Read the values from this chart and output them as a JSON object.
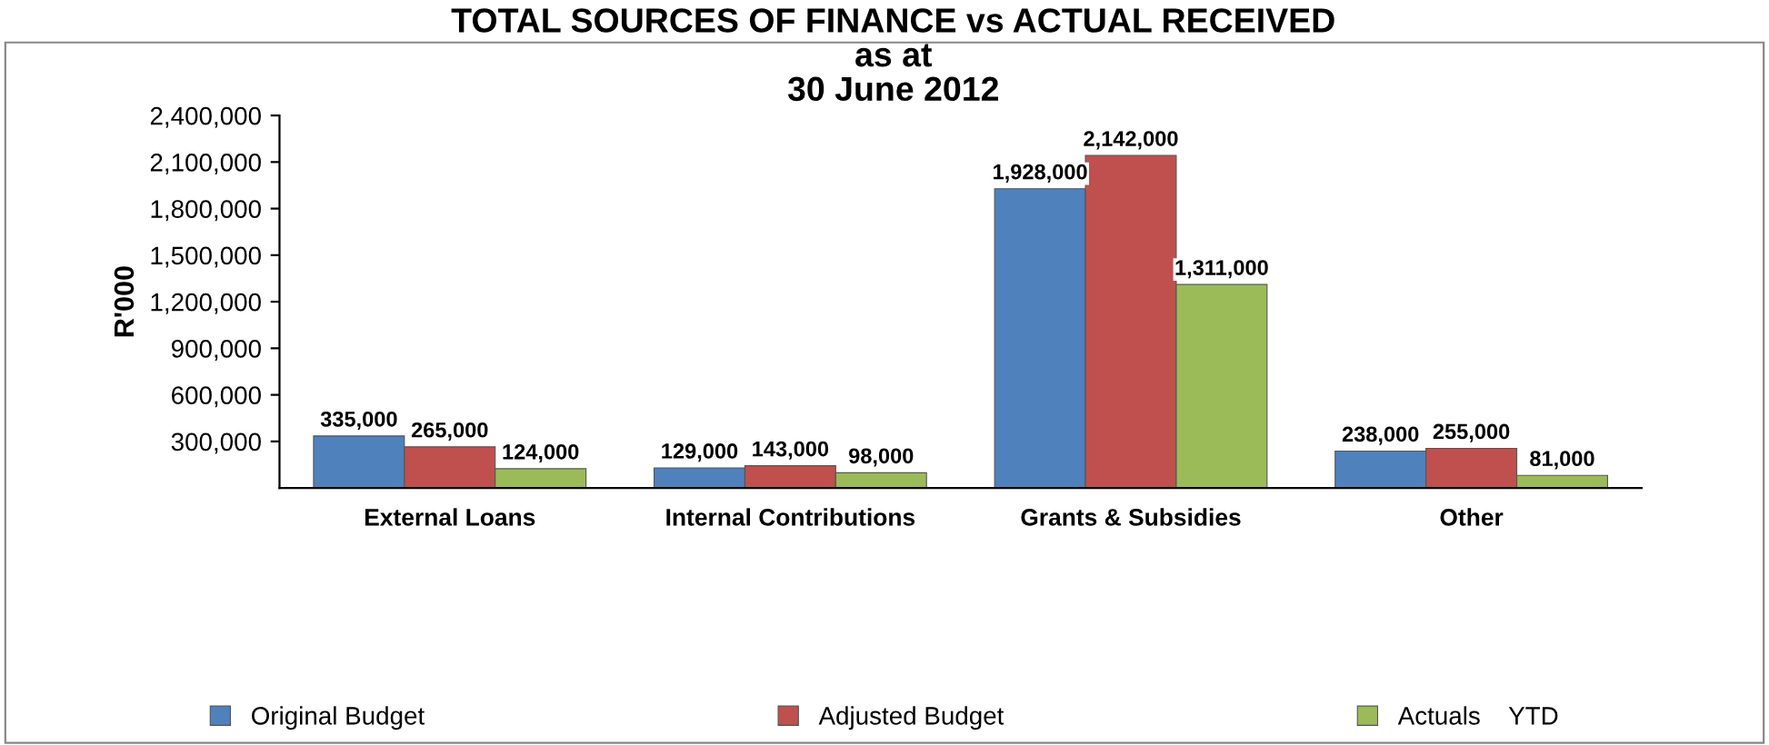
{
  "chart_data": {
    "type": "bar",
    "title": "TOTAL SOURCES OF FINANCE vs ACTUAL RECEIVED\nas at\n30 June 2012",
    "ylabel": "R'000",
    "categories": [
      "External Loans",
      "Internal Contributions",
      "Grants & Subsidies",
      "Other"
    ],
    "series": [
      {
        "name": "Original Budget",
        "color": "#4f81bd",
        "values": [
          335000,
          129000,
          1928000,
          238000
        ],
        "value_labels": [
          "335,000",
          "129,000",
          "1,928,000",
          "238,000"
        ]
      },
      {
        "name": "Adjusted Budget",
        "color": "#c0504d",
        "values": [
          265000,
          143000,
          2142000,
          255000
        ],
        "value_labels": [
          "265,000",
          "143,000",
          "2,142,000",
          "255,000"
        ]
      },
      {
        "name": "Actuals    YTD",
        "color": "#9bbb59",
        "values": [
          124000,
          98000,
          1311000,
          81000
        ],
        "value_labels": [
          "124,000",
          "98,000",
          "1,311,000",
          "81,000"
        ]
      }
    ],
    "ylim": [
      0,
      2400000
    ],
    "yticks": [
      {
        "value": 300000,
        "label": "300,000"
      },
      {
        "value": 600000,
        "label": "600,000"
      },
      {
        "value": 900000,
        "label": "900,000"
      },
      {
        "value": 1200000,
        "label": "1,200,000"
      },
      {
        "value": 1500000,
        "label": "1,500,000"
      },
      {
        "value": 1800000,
        "label": "1,800,000"
      },
      {
        "value": 2100000,
        "label": "2,100,000"
      },
      {
        "value": 2400000,
        "label": "2,400,000"
      }
    ],
    "legend": "bottom"
  }
}
